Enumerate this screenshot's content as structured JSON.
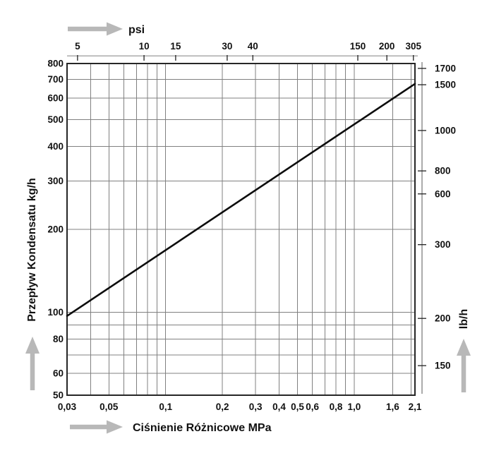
{
  "page": {
    "background": "#ffffff"
  },
  "chart_data": {
    "type": "line",
    "title": "",
    "grid": true,
    "legend": false,
    "x_axis": {
      "label": "Ciśnienie Różnicowe MPa",
      "unit": "MPa",
      "scale": "log",
      "range": [
        0.03,
        2.1
      ],
      "ticks": [
        {
          "v": 0.03,
          "label": "0,03"
        },
        {
          "v": 0.05,
          "label": "0,05"
        },
        {
          "v": 0.1,
          "label": "0,1"
        },
        {
          "v": 0.2,
          "label": "0,2"
        },
        {
          "v": 0.3,
          "label": "0,3"
        },
        {
          "v": 0.4,
          "label": "0,4"
        },
        {
          "v": 0.5,
          "label": "0,5"
        },
        {
          "v": 0.6,
          "label": "0,6"
        },
        {
          "v": 0.8,
          "label": "0,8"
        },
        {
          "v": 1.0,
          "label": "1,0"
        },
        {
          "v": 1.6,
          "label": "1,6"
        },
        {
          "v": 2.1,
          "label": "2,1"
        }
      ],
      "gridlines": [
        0.04,
        0.05,
        0.06,
        0.07,
        0.08,
        0.09,
        0.1,
        0.2,
        0.3,
        0.4,
        0.5,
        0.6,
        0.7,
        0.8,
        0.9,
        1.0,
        1.6,
        2.0
      ]
    },
    "x_axis_top": {
      "label": "psi",
      "unit": "psi",
      "mpa_per_psi": 0.0068948,
      "ticks": [
        {
          "v": 5,
          "label": "5",
          "pos_mpa": 0.0341
        },
        {
          "v": 10,
          "label": "10",
          "pos_mpa": 0.0768
        },
        {
          "v": 15,
          "label": "15",
          "pos_mpa": 0.113
        },
        {
          "v": 30,
          "label": "30",
          "pos_mpa": 0.212
        },
        {
          "v": 40,
          "label": "40",
          "pos_mpa": 0.29
        },
        {
          "v": 150,
          "label": "150",
          "pos_mpa": 1.045
        },
        {
          "v": 200,
          "label": "200",
          "pos_mpa": 1.49
        },
        {
          "v": 305,
          "label": "305",
          "pos_mpa": 2.06
        }
      ]
    },
    "y_axis": {
      "label": "Przepływ Kondensatu kg/h",
      "unit": "kg/h",
      "scale": "log",
      "range": [
        50,
        800
      ],
      "ticks": [
        {
          "v": 800,
          "label": "800"
        },
        {
          "v": 700,
          "label": "700"
        },
        {
          "v": 600,
          "label": "600"
        },
        {
          "v": 500,
          "label": "500"
        },
        {
          "v": 400,
          "label": "400"
        },
        {
          "v": 300,
          "label": "300"
        },
        {
          "v": 200,
          "label": "200"
        },
        {
          "v": 100,
          "label": "100"
        },
        {
          "v": 80,
          "label": "80"
        },
        {
          "v": 60,
          "label": "60"
        },
        {
          "v": 50,
          "label": "50"
        }
      ],
      "gridlines": [
        60,
        70,
        80,
        90,
        100,
        200,
        300,
        400,
        500,
        600,
        700
      ]
    },
    "y_axis_right": {
      "label": "lb/h",
      "unit": "lb/h",
      "lb_per_kg": 2.20462,
      "ticks": [
        {
          "v": 1700,
          "label": "1700",
          "pos_kg": 768
        },
        {
          "v": 1500,
          "label": "1500",
          "pos_kg": 670
        },
        {
          "v": 1000,
          "label": "1000",
          "pos_kg": 457
        },
        {
          "v": 800,
          "label": "800",
          "pos_kg": 326
        },
        {
          "v": 600,
          "label": "600",
          "pos_kg": 269
        },
        {
          "v": 300,
          "label": "300",
          "pos_kg": 176
        },
        {
          "v": 200,
          "label": "200",
          "pos_kg": 95
        },
        {
          "v": 150,
          "label": "150",
          "pos_kg": 64
        }
      ]
    },
    "series": [
      {
        "name": "condensate-capacity-line",
        "color": "#0d0d0d",
        "width": 2.6,
        "points": [
          [
            0.03,
            97
          ],
          [
            2.1,
            675
          ]
        ]
      }
    ],
    "colors": {
      "grid": "#808080",
      "border": "#262626",
      "scale_line": "#ababab",
      "tick": "#222222",
      "text": "#111111",
      "arrow": "#b8b8b8"
    }
  }
}
